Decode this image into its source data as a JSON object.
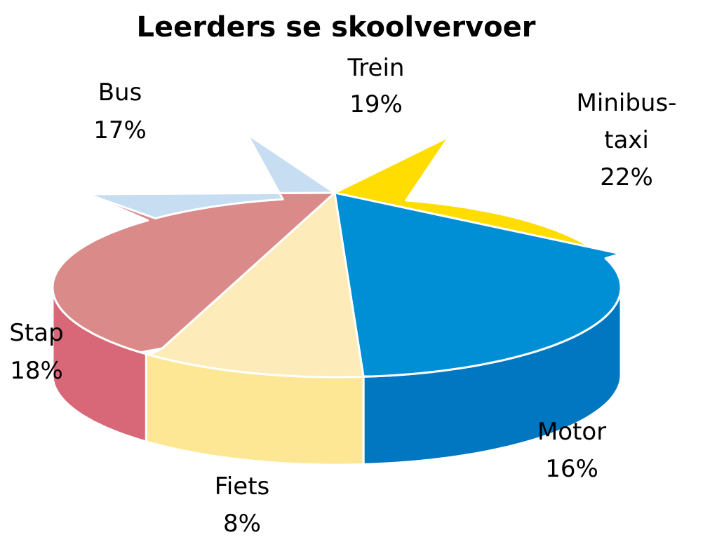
{
  "chart_data": {
    "type": "pie",
    "title": "Leerders se skoolvervoer",
    "three_d": true,
    "legend": "none (labels placed beside slices)",
    "slices": [
      {
        "label_lines": [
          "Trein"
        ],
        "percent_label": "19%",
        "value": 19,
        "top_color": "#C41E45",
        "side_color": "#C41E45"
      },
      {
        "label_lines": [
          "Minibus-",
          "taxi"
        ],
        "percent_label": "22%",
        "value": 22,
        "top_color": "#FFDD00",
        "side_color": "#FFDD00"
      },
      {
        "label_lines": [
          "Motor"
        ],
        "percent_label": "16%",
        "value": 16,
        "top_color": "#008FD5",
        "side_color": "#0077C0"
      },
      {
        "label_lines": [
          "Fiets"
        ],
        "percent_label": "8%",
        "value": 8,
        "top_color": "#FDEBB9",
        "side_color": "#FDE795"
      },
      {
        "label_lines": [
          "Stap"
        ],
        "percent_label": "18%",
        "value": 18,
        "top_color": "#D98A89",
        "side_color": "#D86878"
      },
      {
        "label_lines": [
          "Bus"
        ],
        "percent_label": "17%",
        "value": 17,
        "top_color": "#C6DDF2",
        "side_color": "#C6DDF2"
      }
    ]
  }
}
